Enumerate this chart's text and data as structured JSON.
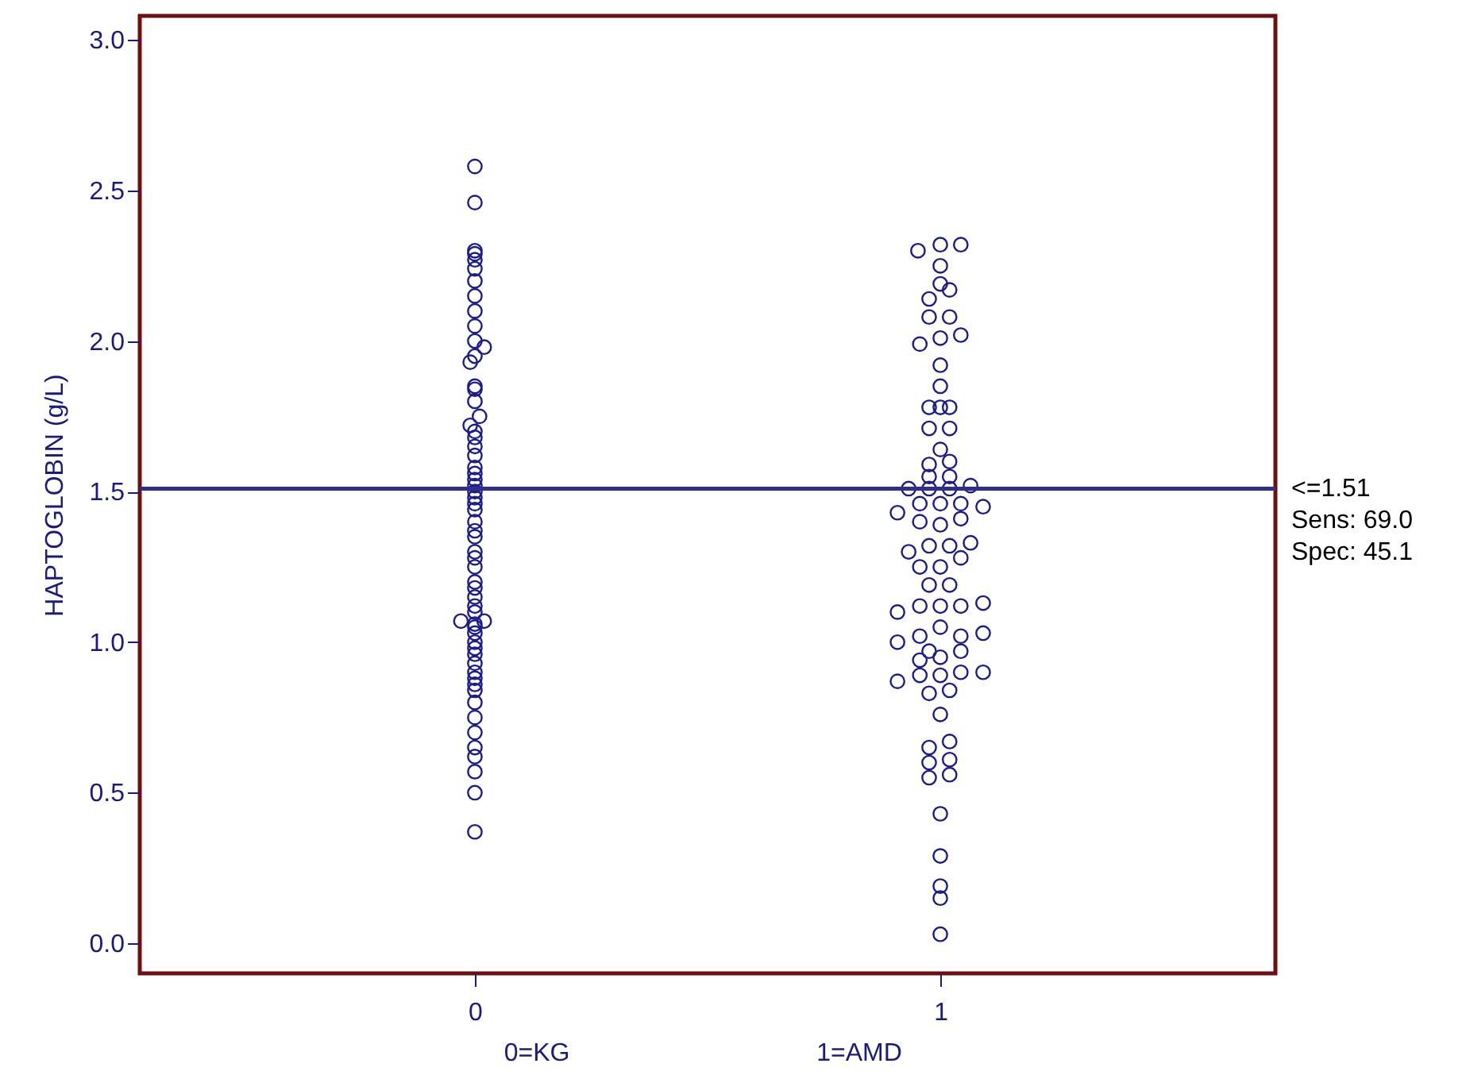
{
  "chart_data": {
    "type": "scatter",
    "ylabel": "HAPTOGLOBIN (g/L)",
    "xlim": [
      -0.72,
      1.72
    ],
    "xticks": [
      0,
      1
    ],
    "ylim": [
      -0.1,
      3.08
    ],
    "yticks": [
      {
        "value": 0,
        "label": "0.0"
      },
      0.5,
      {
        "value": 1,
        "label": "1.0"
      },
      1.5,
      {
        "value": 2,
        "label": "2.0"
      },
      2.5,
      {
        "value": 3,
        "label": "3.0"
      }
    ],
    "grid": false,
    "marker": "circle",
    "tick_labels": "xy",
    "ref_lines": [
      {
        "axis": "y",
        "value": 1.51,
        "label": "<=1.51\nSens: 69.0\nSpec: 45.1",
        "color": "#2e2e8e"
      }
    ],
    "annotations": [
      "0=KG",
      "1=AMD"
    ],
    "series": [
      {
        "color": "#1c1c8c",
        "x": [
          0,
          0,
          0,
          0,
          0,
          0,
          0,
          0,
          0,
          0,
          0,
          0.02,
          0,
          -0.01,
          0,
          0,
          0,
          0.01,
          -0.01,
          0,
          0,
          0,
          0,
          0,
          0,
          0,
          0,
          0,
          0,
          0,
          0,
          0,
          0,
          0,
          0,
          0,
          0,
          0,
          0,
          0,
          0,
          0,
          -0.03,
          0.02,
          0,
          0,
          0,
          0,
          0,
          0,
          0,
          0,
          0,
          0,
          0,
          0,
          0,
          0,
          0,
          0,
          0,
          0,
          0
        ],
        "values": [
          2.58,
          2.46,
          2.3,
          2.29,
          2.27,
          2.24,
          2.2,
          2.15,
          2.1,
          2.05,
          2.0,
          1.98,
          1.95,
          1.93,
          1.85,
          1.84,
          1.8,
          1.75,
          1.72,
          1.7,
          1.68,
          1.65,
          1.62,
          1.58,
          1.56,
          1.54,
          1.52,
          1.5,
          1.48,
          1.46,
          1.44,
          1.4,
          1.37,
          1.35,
          1.3,
          1.28,
          1.25,
          1.2,
          1.18,
          1.15,
          1.12,
          1.1,
          1.07,
          1.07,
          1.06,
          1.05,
          1.03,
          1.0,
          0.98,
          0.96,
          0.93,
          0.9,
          0.88,
          0.86,
          0.84,
          0.8,
          0.75,
          0.7,
          0.65,
          0.62,
          0.57,
          0.5,
          0.37
        ]
      },
      {
        "color": "#1c1c8c",
        "x": [
          0.952,
          1,
          1.044,
          1,
          1,
          1.02,
          0.976,
          0.976,
          1.02,
          1.044,
          0.956,
          1,
          1,
          1,
          1,
          0.976,
          1.02,
          0.976,
          1.02,
          1,
          0.976,
          1.02,
          0.976,
          1.02,
          0.932,
          0.976,
          1.02,
          1.065,
          0.908,
          0.956,
          1,
          1.044,
          1.092,
          0.956,
          1,
          1.044,
          0.932,
          0.976,
          1.02,
          1.065,
          0.956,
          1,
          1.044,
          0.908,
          0.956,
          1,
          1.044,
          1.092,
          0.976,
          1.02,
          1,
          0.956,
          1.044,
          0.908,
          1.092,
          0.976,
          1.044,
          0.956,
          1,
          1,
          0.956,
          1.044,
          1.092,
          0.908,
          1.02,
          0.976,
          1,
          0.976,
          1.02,
          0.976,
          1.02,
          0.976,
          1.02,
          1,
          1,
          1,
          1,
          1
        ],
        "values": [
          2.3,
          2.32,
          2.32,
          2.25,
          2.19,
          2.17,
          2.14,
          2.08,
          2.08,
          2.02,
          1.99,
          2.01,
          1.92,
          1.85,
          1.78,
          1.78,
          1.78,
          1.71,
          1.71,
          1.64,
          1.59,
          1.6,
          1.55,
          1.55,
          1.51,
          1.51,
          1.51,
          1.52,
          1.43,
          1.46,
          1.46,
          1.46,
          1.45,
          1.4,
          1.39,
          1.41,
          1.3,
          1.32,
          1.32,
          1.33,
          1.25,
          1.25,
          1.28,
          1.1,
          1.12,
          1.12,
          1.12,
          1.13,
          1.19,
          1.19,
          1.05,
          1.02,
          1.02,
          1.0,
          1.03,
          0.97,
          0.97,
          0.94,
          0.95,
          0.89,
          0.89,
          0.9,
          0.9,
          0.87,
          0.84,
          0.83,
          0.76,
          0.65,
          0.67,
          0.6,
          0.61,
          0.55,
          0.56,
          0.43,
          0.29,
          0.19,
          0.15,
          0.03
        ]
      }
    ]
  }
}
